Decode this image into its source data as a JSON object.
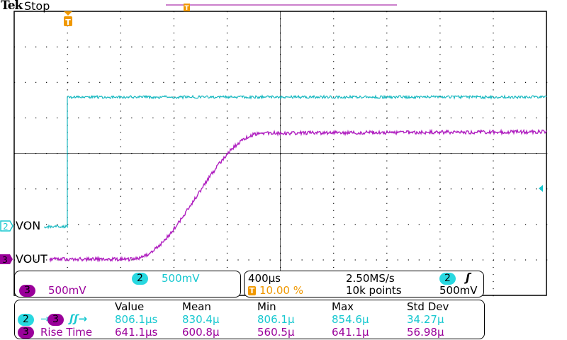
{
  "header": {
    "brand": "Tek",
    "status": "Stop"
  },
  "colors": {
    "ch2": "#18c8d0",
    "ch3": "#a010b0",
    "trigger": "#f09800"
  },
  "channels": [
    {
      "number": "2",
      "label": "VON",
      "scale": "500mV"
    },
    {
      "number": "3",
      "label": "VOUT",
      "scale": "500mV"
    }
  ],
  "timebase": {
    "scale": "400µs",
    "trigger_position": "10.00 %",
    "sample_rate": "2.50MS/s",
    "record_length": "10k points",
    "trigger_source": "2",
    "trigger_slope_icon": "rising-edge",
    "trigger_level": "500mV",
    "trigger_marker": "T"
  },
  "measurements": {
    "headers": [
      "Value",
      "Mean",
      "Min",
      "Max",
      "Std Dev"
    ],
    "rows": [
      {
        "src": "2",
        "dst": "3",
        "name": "",
        "icon": "delay-rise-rise",
        "values": [
          "806.1µs",
          "830.4µ",
          "806.1µ",
          "854.6µ",
          "34.27µ"
        ]
      },
      {
        "src": "3",
        "name": "Rise Time",
        "values": [
          "641.1µs",
          "600.8µ",
          "560.5µ",
          "641.1µ",
          "56.98µ"
        ]
      }
    ]
  }
}
